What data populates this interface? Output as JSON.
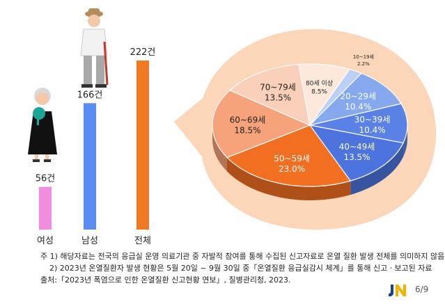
{
  "chart_data": [
    {
      "type": "bar",
      "categories": [
        "여성",
        "남성",
        "전체"
      ],
      "values": [
        56,
        166,
        222
      ],
      "value_labels": [
        "56건",
        "166건",
        "222건"
      ],
      "colors": [
        "#f28ce0",
        "#5b8cf2",
        "#f07a23"
      ],
      "ylim": [
        0,
        222
      ],
      "grid": false
    },
    {
      "type": "pie",
      "categories": [
        "10~19세",
        "20~29세",
        "30~39세",
        "40~49세",
        "50~59세",
        "60~69세",
        "70~79세",
        "80세 이상"
      ],
      "values": [
        2.2,
        10.4,
        10.4,
        13.5,
        23.0,
        18.5,
        13.5,
        8.5
      ],
      "value_labels": [
        "2.2%",
        "10.4%",
        "10.4%",
        "13.5%",
        "23.0%",
        "18.5%",
        "13.5%",
        "8.5%"
      ],
      "colors": [
        "#bcd0f4",
        "#86a8ee",
        "#5a82e6",
        "#4d74de",
        "#f26f21",
        "#f6a27a",
        "#fad0bb",
        "#fde8dc"
      ]
    }
  ],
  "notes": [
    "주 1) 해당자료는 전국의 응급실 운영 의료기관 중 자발적 참여를 통해 수집된 신고자료로 온열 질환 발생 전체를 의미하지 않음",
    "2) 2023년 온열질환자 발생 현황은 5월 20일 ~ 9월 30일 중「온열질환 응급실감시 체계」를 통해 신고ㆍ보고된 자료",
    "출처:「2023년 폭염으로 인한 온열질환 신고현황 연보」, 질병관리청, 2023."
  ],
  "logo": {
    "text": "JN"
  },
  "page_indicator": "6/9"
}
